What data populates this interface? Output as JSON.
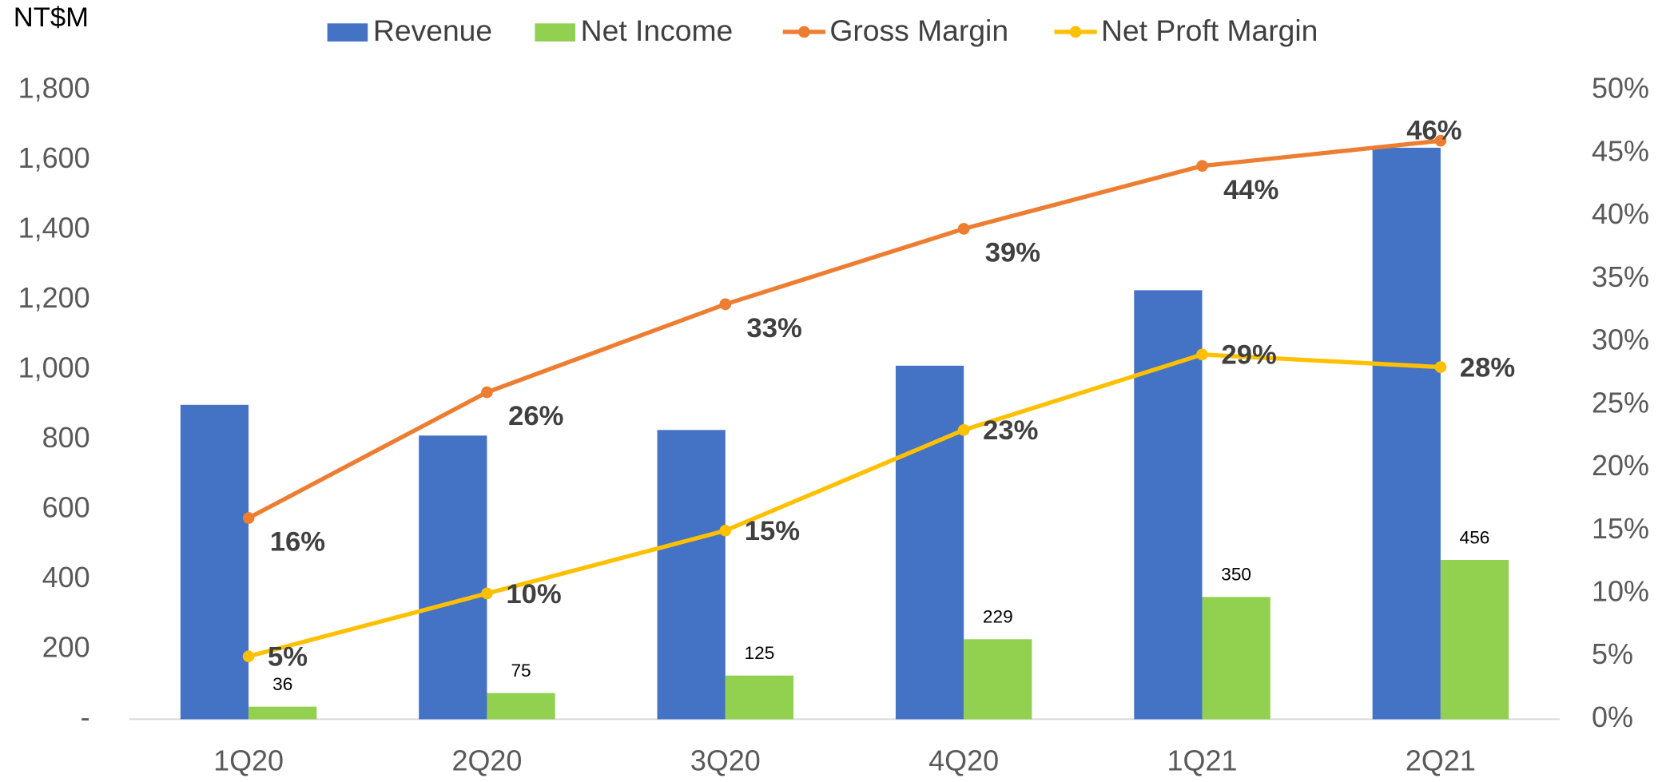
{
  "chart_data": {
    "type": "bar",
    "y_label": "NT$M",
    "categories": [
      "1Q20",
      "2Q20",
      "3Q20",
      "4Q20",
      "1Q21",
      "2Q21"
    ],
    "series": [
      {
        "name": "Revenue",
        "type": "bar",
        "color": "#4472c4",
        "values": [
          900,
          812,
          828,
          1012,
          1228,
          1636
        ]
      },
      {
        "name": "Net Income",
        "type": "bar",
        "color": "#92d050",
        "values": [
          36,
          75,
          125,
          229,
          350,
          456
        ]
      },
      {
        "name": "Gross Margin",
        "type": "line",
        "axis": "y2",
        "color": "#ed7d31",
        "values": [
          16,
          26,
          33,
          39,
          44,
          46
        ],
        "value_labels": [
          "16%",
          "26%",
          "33%",
          "39%",
          "44%",
          "46%"
        ]
      },
      {
        "name": "Net Proft Margin",
        "type": "line",
        "axis": "y2",
        "color": "#ffc000",
        "values": [
          5,
          10,
          15,
          23,
          29,
          28
        ],
        "value_labels": [
          "5%",
          "10%",
          "15%",
          "23%",
          "29%",
          "28%"
        ]
      }
    ],
    "ylim": [
      0,
      1800
    ],
    "yticks": [
      {
        "value": 0,
        "label": "-"
      },
      200,
      400,
      600,
      800,
      {
        "value": 1000,
        "label": "1,000"
      },
      {
        "value": 1200,
        "label": "1,200"
      },
      {
        "value": 1400,
        "label": "1,400"
      },
      {
        "value": 1600,
        "label": "1,600"
      },
      {
        "value": 1800,
        "label": "1,800"
      }
    ],
    "y2lim": [
      0,
      50
    ],
    "y2ticks": [
      {
        "value": 0,
        "label": "0%"
      },
      {
        "value": 5,
        "label": "5%"
      },
      {
        "value": 10,
        "label": "10%"
      },
      {
        "value": 15,
        "label": "15%"
      },
      {
        "value": 20,
        "label": "20%"
      },
      {
        "value": 25,
        "label": "25%"
      },
      {
        "value": 30,
        "label": "30%"
      },
      {
        "value": 35,
        "label": "35%"
      },
      {
        "value": 40,
        "label": "40%"
      },
      {
        "value": 45,
        "label": "45%"
      },
      {
        "value": 50,
        "label": "50%"
      }
    ],
    "legend": "top"
  }
}
